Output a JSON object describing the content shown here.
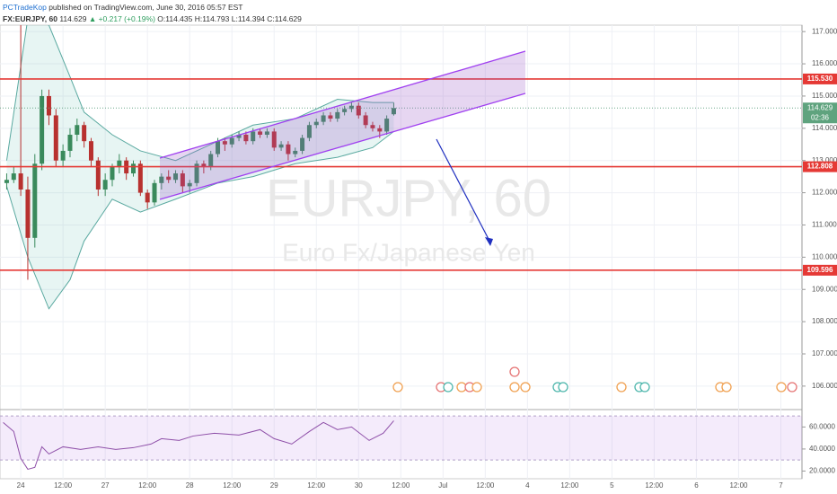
{
  "header": {
    "author": "PCTradeKop",
    "published": "published on TradingView.com, June 30, 2016 05:57 EST",
    "symbol": "FX:EURJPY, 60",
    "price": "114.629",
    "change": "▲ +0.217 (+0.19%)",
    "open": "O:114.435",
    "high": "H:114.793",
    "low": "L:114.394",
    "close": "C:114.629"
  },
  "chart_data": {
    "type": "candlestick",
    "watermark_symbol": "EURJPY, 60",
    "watermark_name": "Euro Fx/Japanese Yen",
    "up_color": "#3a8a5c",
    "down_color": "#b8312f",
    "x": [
      -4,
      -2,
      0,
      2,
      4,
      6,
      8,
      10,
      12,
      14,
      16,
      18,
      20,
      22,
      24,
      26,
      28,
      30,
      32,
      34,
      36,
      38,
      40,
      42,
      44,
      46,
      48,
      50,
      52,
      54,
      56,
      58,
      60,
      62,
      64,
      66,
      68,
      70,
      72,
      74,
      76,
      78,
      80,
      82,
      84,
      86,
      88,
      90,
      92,
      94,
      96,
      98,
      100,
      102,
      104,
      106
    ],
    "open": [
      112.3,
      112.4,
      112.6,
      112.1,
      110.6,
      112.9,
      115.0,
      114.4,
      113.0,
      113.3,
      113.8,
      114.1,
      113.6,
      113.0,
      112.1,
      112.4,
      112.8,
      113.0,
      112.6,
      112.9,
      112.0,
      111.7,
      112.3,
      112.5,
      112.4,
      112.6,
      112.2,
      112.3,
      112.9,
      112.8,
      113.2,
      113.6,
      113.5,
      113.7,
      113.8,
      113.6,
      113.9,
      113.8,
      113.9,
      113.4,
      113.5,
      113.2,
      113.3,
      113.7,
      114.1,
      114.2,
      114.4,
      114.3,
      114.5,
      114.6,
      114.7,
      114.4,
      114.1,
      114.0,
      113.9,
      114.435
    ],
    "high": [
      112.6,
      112.8,
      117.4,
      112.5,
      113.2,
      115.2,
      115.2,
      114.6,
      113.5,
      114.0,
      114.3,
      114.2,
      113.7,
      113.1,
      112.6,
      112.9,
      113.2,
      113.1,
      113.0,
      113.0,
      112.1,
      112.4,
      112.6,
      112.7,
      112.7,
      112.7,
      112.4,
      113.0,
      113.0,
      113.3,
      113.7,
      113.7,
      113.8,
      113.9,
      113.9,
      114.0,
      114.0,
      114.0,
      114.0,
      113.6,
      113.6,
      113.4,
      113.8,
      114.2,
      114.3,
      114.5,
      114.5,
      114.6,
      114.7,
      114.8,
      114.8,
      114.5,
      114.2,
      114.1,
      114.4,
      114.793
    ],
    "low": [
      112.1,
      112.3,
      111.9,
      109.3,
      110.3,
      112.7,
      114.1,
      112.8,
      112.8,
      113.1,
      113.6,
      113.4,
      112.8,
      111.9,
      111.9,
      112.2,
      112.6,
      112.4,
      112.5,
      111.9,
      111.5,
      111.6,
      112.1,
      112.3,
      112.3,
      112.0,
      112.0,
      112.2,
      112.6,
      112.7,
      113.1,
      113.3,
      113.4,
      113.6,
      113.5,
      113.5,
      113.7,
      113.7,
      113.3,
      113.3,
      113.0,
      113.1,
      113.2,
      113.6,
      114.0,
      114.1,
      114.2,
      114.2,
      114.4,
      114.5,
      114.3,
      114.0,
      113.9,
      113.7,
      113.8,
      114.394
    ],
    "close": [
      112.4,
      112.6,
      112.1,
      110.6,
      112.9,
      115.0,
      114.4,
      113.0,
      113.3,
      113.8,
      114.1,
      113.6,
      113.0,
      112.1,
      112.4,
      112.8,
      113.0,
      112.6,
      112.9,
      112.0,
      111.7,
      112.3,
      112.5,
      112.4,
      112.6,
      112.2,
      112.3,
      112.9,
      112.8,
      113.2,
      113.6,
      113.5,
      113.7,
      113.8,
      113.6,
      113.9,
      113.8,
      113.9,
      113.4,
      113.5,
      113.2,
      113.3,
      113.7,
      114.1,
      114.2,
      114.4,
      114.3,
      114.5,
      114.6,
      114.7,
      114.4,
      114.1,
      114.0,
      113.9,
      114.3,
      114.629
    ],
    "bollinger": {
      "x": [
        -4,
        2,
        8,
        14,
        18,
        26,
        34,
        44,
        56,
        66,
        78,
        90,
        100,
        106
      ],
      "upper": [
        113.0,
        117.4,
        117.2,
        115.6,
        114.5,
        113.8,
        113.3,
        113.0,
        113.6,
        114.1,
        114.3,
        114.9,
        114.8,
        114.8
      ],
      "lower": [
        112.2,
        110.0,
        108.4,
        109.3,
        110.5,
        111.8,
        111.4,
        111.8,
        112.3,
        112.5,
        112.9,
        113.1,
        113.4,
        113.9
      ],
      "color": "#5aa9a0"
    },
    "levels": [
      {
        "value": 115.53,
        "label": "115.530"
      },
      {
        "value": 112.808,
        "label": "112.808"
      },
      {
        "value": 109.596,
        "label": "109.596"
      }
    ],
    "level_color": "#e53935",
    "last_price_label": "114.629",
    "countdown": "02:36",
    "xlim": [
      -5.9,
      222
    ],
    "ylim": [
      105.3,
      117.2
    ],
    "grid": true,
    "xticks": [
      {
        "value": 0,
        "label": "24"
      },
      {
        "value": 12,
        "label": "12:00"
      },
      {
        "value": 24,
        "label": "27"
      },
      {
        "value": 36,
        "label": "12:00"
      },
      {
        "value": 48,
        "label": "28"
      },
      {
        "value": 60,
        "label": "12:00"
      },
      {
        "value": 72,
        "label": "29"
      },
      {
        "value": 84,
        "label": "12:00"
      },
      {
        "value": 96,
        "label": "30"
      },
      {
        "value": 108,
        "label": "12:00"
      },
      {
        "value": 120,
        "label": "Jul"
      },
      {
        "value": 132,
        "label": "12:00"
      },
      {
        "value": 144,
        "label": "4"
      },
      {
        "value": 156,
        "label": "12:00"
      },
      {
        "value": 168,
        "label": "5"
      },
      {
        "value": 180,
        "label": "12:00"
      },
      {
        "value": 192,
        "label": "6"
      },
      {
        "value": 204,
        "label": "12:00"
      },
      {
        "value": 216,
        "label": "7"
      }
    ],
    "yticks": [
      {
        "value": 106,
        "label": "106.000"
      },
      {
        "value": 107,
        "label": "107.000"
      },
      {
        "value": 108,
        "label": "108.000"
      },
      {
        "value": 109,
        "label": "109.000"
      },
      {
        "value": 110,
        "label": "110.000"
      },
      {
        "value": 111,
        "label": "111.000"
      },
      {
        "value": 112,
        "label": "112.000"
      },
      {
        "value": 113,
        "label": "113.000"
      },
      {
        "value": 114,
        "label": "114.000"
      },
      {
        "value": 115,
        "label": "115.000"
      },
      {
        "value": 116,
        "label": "116.000"
      },
      {
        "value": 117,
        "label": "117.000"
      }
    ],
    "rsi": {
      "x": [
        -5,
        -2,
        0,
        2,
        4,
        6,
        8,
        12,
        17,
        22,
        27,
        32,
        37,
        40,
        45,
        49,
        55,
        62,
        68,
        72,
        77,
        82,
        86,
        90,
        94,
        99,
        103,
        106
      ],
      "values": [
        64.1,
        55.9,
        31.4,
        21.6,
        23.3,
        42.0,
        35.5,
        42.0,
        39.6,
        42.0,
        39.6,
        41.2,
        44.5,
        49.4,
        47.8,
        51.8,
        54.3,
        52.7,
        57.6,
        49.4,
        44.5,
        55.9,
        64.1,
        57.6,
        60.0,
        47.8,
        54.3,
        65.7
      ],
      "color": "#8e4fa8",
      "ylim": [
        13,
        75
      ],
      "band": [
        30,
        70
      ],
      "yticks": [
        {
          "value": 20,
          "label": "20.0000"
        },
        {
          "value": 40,
          "label": "40.0000"
        },
        {
          "value": 60,
          "label": "60.0000"
        }
      ]
    }
  }
}
